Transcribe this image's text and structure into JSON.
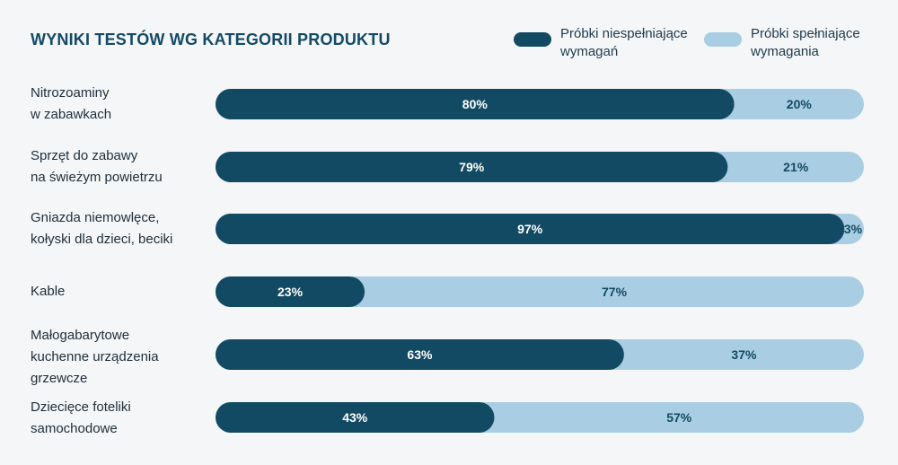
{
  "chart_data": {
    "type": "bar",
    "orientation": "horizontal",
    "stacked": true,
    "title": "WYNIKI TESTÓW WG KATEGORII PRODUKTU",
    "categories": [
      [
        "Nitrozoaminy",
        "w zabawkach"
      ],
      [
        "Sprzęt do zabawy",
        "na świeżym powietrzu"
      ],
      [
        "Gniazda niemowlęce,",
        "kołyski dla dzieci, beciki"
      ],
      [
        "Kable"
      ],
      [
        "Małogabarytowe",
        "kuchenne urządzenia",
        "grzewcze"
      ],
      [
        "Dziecięce foteliki",
        "samochodowe"
      ]
    ],
    "series": [
      {
        "name": "Próbki niespełniające wymagań",
        "name_lines": [
          "Próbki niespełniające",
          "wymagań"
        ],
        "color": "#134a63",
        "text_color": "#ffffff",
        "values": [
          80,
          79,
          97,
          23,
          63,
          43
        ],
        "labels": [
          "80%",
          "79%",
          "97%",
          "23%",
          "63%",
          "43%"
        ]
      },
      {
        "name": "Próbki spełniające wymagania",
        "name_lines": [
          "Próbki spełniające",
          "wymagania"
        ],
        "color": "#a9cde2",
        "text_color": "#134a63",
        "values": [
          20,
          21,
          3,
          77,
          37,
          57
        ],
        "labels": [
          "20%",
          "21%",
          "3%",
          "77%",
          "37%",
          "57%"
        ]
      }
    ],
    "xlim": [
      0,
      100
    ],
    "legend_position": "top-right",
    "grid": false
  }
}
